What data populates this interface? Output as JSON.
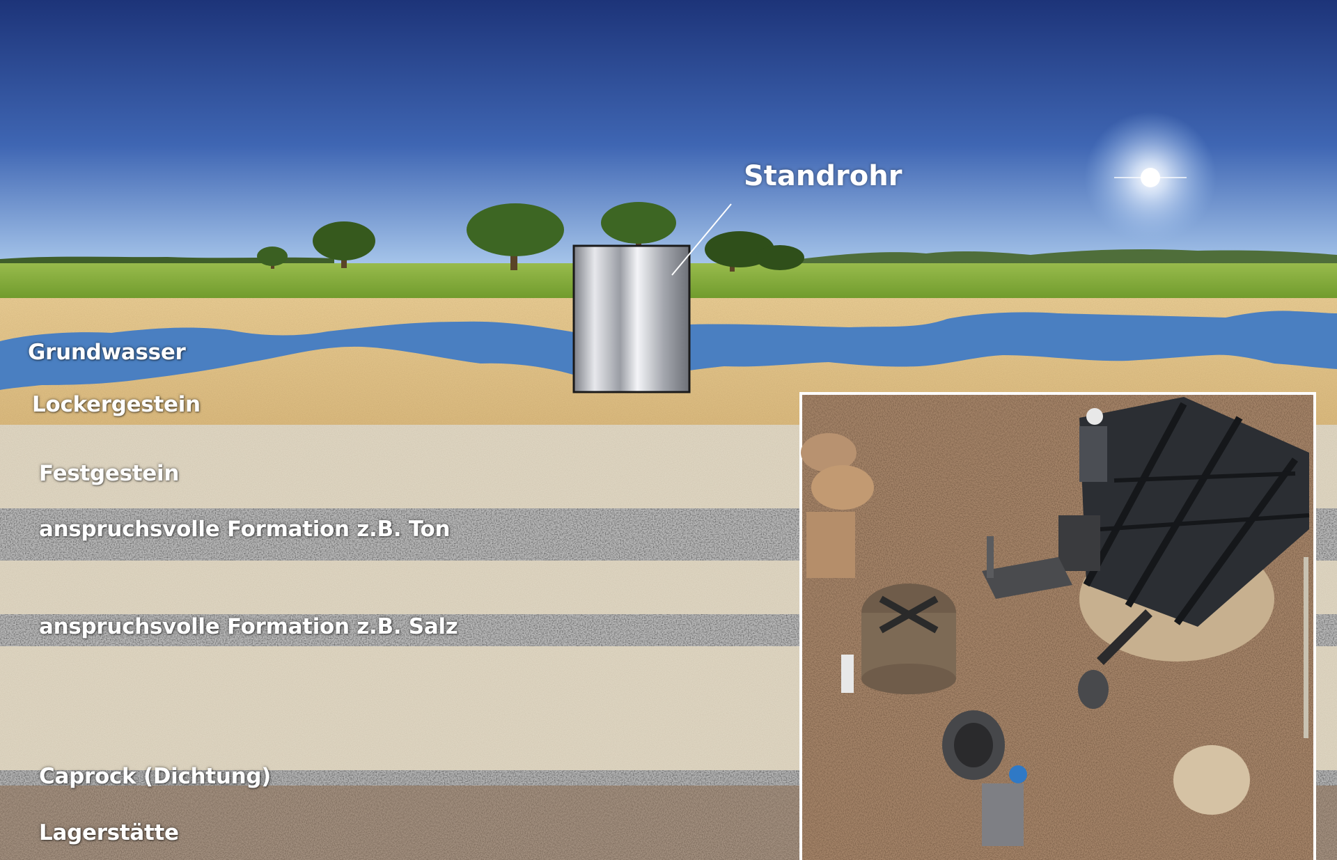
{
  "diagram": {
    "callout": {
      "label": "Standrohr"
    },
    "layers": [
      {
        "id": "grundwasser",
        "label": "Grundwasser",
        "color": "#4a7fc1"
      },
      {
        "id": "lockergestein",
        "label": "Lockergestein",
        "color": "#e3c48c"
      },
      {
        "id": "festgestein",
        "label": "Festgestein",
        "color": "#e1d8c4"
      },
      {
        "id": "formation-ton",
        "label": "anspruchsvolle Formation z.B. Ton",
        "color": "#8c8c8c"
      },
      {
        "id": "formation-salz",
        "label": "anspruchsvolle Formation z.B. Salz",
        "color": "#8c8c8c"
      },
      {
        "id": "caprock",
        "label": "Caprock (Dichtung)",
        "color": "#8c8c8c"
      },
      {
        "id": "lagerstaette",
        "label": "Lagerstätte",
        "color": "#8d7a69"
      }
    ],
    "colors": {
      "sky_top": "#213c84",
      "sky_bottom": "#8fb5e3",
      "meadow": "#85ad3a",
      "pipe": "#b9bcc2"
    }
  }
}
